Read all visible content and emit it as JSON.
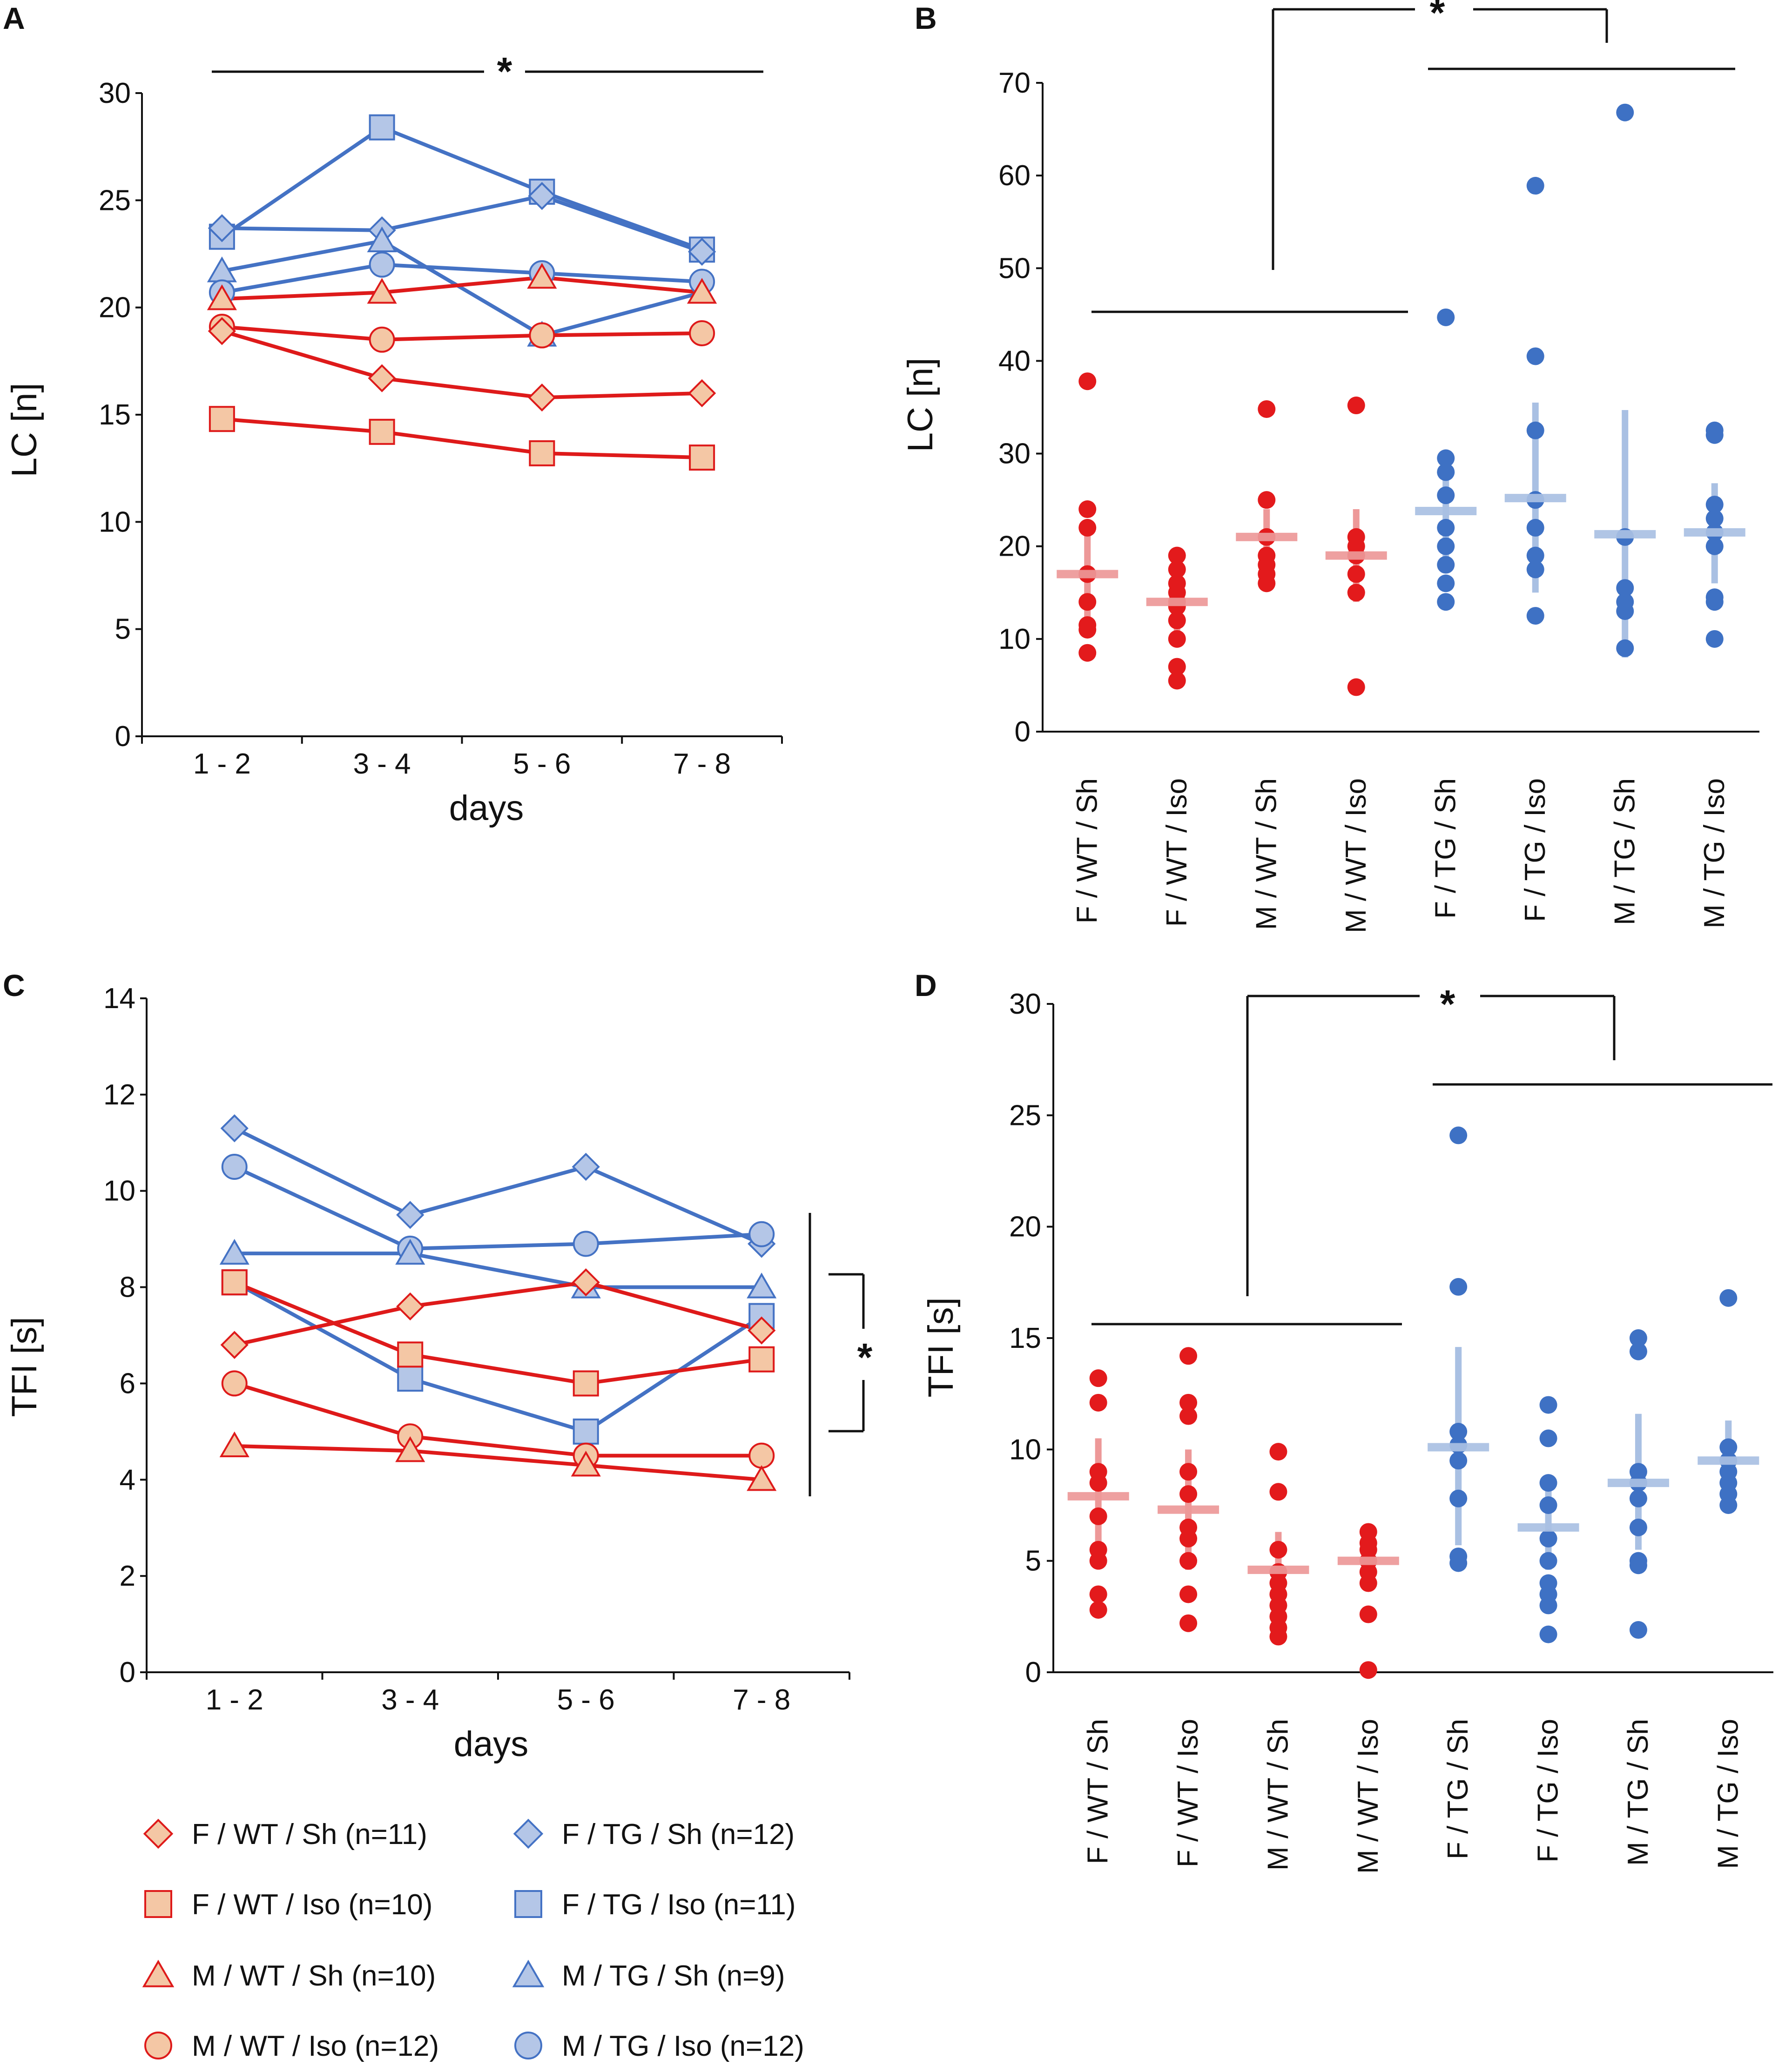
{
  "colors": {
    "wt": "#de1a1a",
    "tg": "#4472c4",
    "wt_fill": "#f4c7a5",
    "tg_fill": "#b4c6e7",
    "wt_dot": "#e31a1c",
    "tg_dot": "#3e71c4",
    "wt_bar": "#ed9898",
    "tg_bar": "#a9c0e3",
    "axis": "#111111"
  },
  "panel_labels": {
    "A": "A",
    "B": "B",
    "C": "C",
    "D": "D"
  },
  "significance": {
    "A": "*",
    "B": "*",
    "C": "*",
    "D": "*"
  },
  "legend": [
    {
      "label": "F / WT / Sh (n=11)",
      "marker": "diamond-marker",
      "group": "wt"
    },
    {
      "label": "F / TG / Sh (n=12)",
      "marker": "diamond-marker",
      "group": "tg"
    },
    {
      "label": "F / WT / Iso (n=10)",
      "marker": "square-marker",
      "group": "wt"
    },
    {
      "label": "F / TG / Iso (n=11)",
      "marker": "square-marker",
      "group": "tg"
    },
    {
      "label": "M / WT / Sh (n=10)",
      "marker": "triangle-marker",
      "group": "wt"
    },
    {
      "label": "M / TG / Sh (n=9)",
      "marker": "triangle-marker",
      "group": "tg"
    },
    {
      "label": "M / WT / Iso (n=12)",
      "marker": "circle-marker",
      "group": "wt"
    },
    {
      "label": "M / TG / Iso (n=12)",
      "marker": "circle-marker",
      "group": "tg"
    }
  ],
  "chart_data": [
    {
      "panel": "A",
      "type": "line",
      "xlabel": "days",
      "ylabel": "LC [n]",
      "categories": [
        "1 - 2",
        "3 - 4",
        "5 - 6",
        "7 - 8"
      ],
      "ylim": [
        0,
        30
      ],
      "yticks": [
        "0",
        "5",
        "10",
        "15",
        "20",
        "25",
        "30"
      ],
      "series": [
        {
          "name": "F / TG / Iso",
          "group": "tg",
          "marker": "square",
          "values": [
            23.3,
            28.4,
            25.4,
            22.7
          ]
        },
        {
          "name": "F / TG / Sh",
          "group": "tg",
          "marker": "diamond",
          "values": [
            23.7,
            23.6,
            25.2,
            22.6
          ]
        },
        {
          "name": "M / TG / Sh",
          "group": "tg",
          "marker": "triangle",
          "values": [
            21.7,
            23.1,
            18.7,
            20.7
          ]
        },
        {
          "name": "M / TG / Iso",
          "group": "tg",
          "marker": "circle",
          "values": [
            20.7,
            22.0,
            21.6,
            21.2
          ]
        },
        {
          "name": "M / WT / Sh",
          "group": "wt",
          "marker": "triangle",
          "values": [
            20.4,
            20.7,
            21.4,
            20.7
          ]
        },
        {
          "name": "M / WT / Iso",
          "group": "wt",
          "marker": "circle",
          "values": [
            19.1,
            18.5,
            18.7,
            18.8
          ]
        },
        {
          "name": "F / WT / Sh",
          "group": "wt",
          "marker": "diamond",
          "values": [
            18.9,
            16.7,
            15.8,
            16.0
          ]
        },
        {
          "name": "F / WT / Iso",
          "group": "wt",
          "marker": "square",
          "values": [
            14.8,
            14.2,
            13.2,
            13.0
          ]
        }
      ]
    },
    {
      "panel": "B",
      "type": "scatter",
      "ylabel": "LC [n]",
      "ylim": [
        0,
        70
      ],
      "yticks": [
        "0",
        "10",
        "20",
        "30",
        "40",
        "50",
        "60",
        "70"
      ],
      "categories": [
        "F / WT / Sh",
        "F / WT / Iso",
        "M / WT / Sh",
        "M / WT / Iso",
        "F / TG / Sh",
        "F / TG / Iso",
        "M / TG / Sh",
        "M / TG / Iso"
      ],
      "groups": [
        "wt",
        "wt",
        "wt",
        "wt",
        "tg",
        "tg",
        "tg",
        "tg"
      ],
      "points": [
        [
          37.8,
          24.0,
          22.0,
          17.0,
          14.0,
          11.5,
          11.0,
          8.5
        ],
        [
          19.0,
          17.5,
          16.0,
          15.0,
          14.0,
          13.5,
          12.0,
          10.0,
          7.0,
          5.5
        ],
        [
          34.8,
          25.0,
          21.0,
          19.0,
          18.0,
          17.0,
          16.0
        ],
        [
          35.2,
          21.0,
          20.0,
          19.0,
          17.0,
          15.0,
          4.8
        ],
        [
          44.7,
          29.5,
          28.0,
          25.5,
          22.0,
          20.0,
          18.0,
          16.0,
          14.0
        ],
        [
          58.9,
          40.5,
          32.5,
          25.0,
          22.0,
          19.0,
          17.5,
          12.5
        ],
        [
          66.8,
          21.0,
          15.5,
          14.0,
          13.0,
          9.0
        ],
        [
          32.5,
          32.0,
          24.5,
          23.0,
          21.5,
          20.0,
          14.5,
          14.0,
          10.0
        ]
      ],
      "means": [
        17.0,
        14.0,
        21.0,
        19.0,
        23.8,
        25.2,
        21.3,
        21.5
      ],
      "errors": [
        [
          12.0,
          22.0
        ],
        [
          10.5,
          17.0
        ],
        [
          18.0,
          24.0
        ],
        [
          14.0,
          24.0
        ],
        [
          18.5,
          28.5
        ],
        [
          15.0,
          35.5
        ],
        [
          8.0,
          34.7
        ],
        [
          16.0,
          26.8
        ]
      ]
    },
    {
      "panel": "C",
      "type": "line",
      "xlabel": "days",
      "ylabel": "TFI [s]",
      "categories": [
        "1 - 2",
        "3 - 4",
        "5 - 6",
        "7 - 8"
      ],
      "ylim": [
        0,
        14
      ],
      "yticks": [
        "0",
        "2",
        "4",
        "6",
        "8",
        "10",
        "12",
        "14"
      ],
      "series": [
        {
          "name": "F / TG / Sh",
          "group": "tg",
          "marker": "diamond",
          "values": [
            11.3,
            9.5,
            10.5,
            8.9
          ]
        },
        {
          "name": "M / TG / Iso",
          "group": "tg",
          "marker": "circle",
          "values": [
            10.5,
            8.8,
            8.9,
            9.1
          ]
        },
        {
          "name": "M / TG / Sh",
          "group": "tg",
          "marker": "triangle",
          "values": [
            8.7,
            8.7,
            8.0,
            8.0
          ]
        },
        {
          "name": "F / TG / Iso",
          "group": "tg",
          "marker": "square",
          "values": [
            8.1,
            6.1,
            5.0,
            7.4
          ]
        },
        {
          "name": "F / WT / Sh",
          "group": "wt",
          "marker": "diamond",
          "values": [
            6.8,
            7.6,
            8.1,
            7.1
          ]
        },
        {
          "name": "F / WT / Iso",
          "group": "wt",
          "marker": "square",
          "values": [
            8.1,
            6.6,
            6.0,
            6.5
          ]
        },
        {
          "name": "M / WT / Iso",
          "group": "wt",
          "marker": "circle",
          "values": [
            6.0,
            4.9,
            4.5,
            4.5
          ]
        },
        {
          "name": "M / WT / Sh",
          "group": "wt",
          "marker": "triangle",
          "values": [
            4.7,
            4.6,
            4.3,
            4.0
          ]
        }
      ]
    },
    {
      "panel": "D",
      "type": "scatter",
      "ylabel": "TFI [s]",
      "ylim": [
        0,
        30
      ],
      "yticks": [
        "0",
        "5",
        "10",
        "15",
        "20",
        "25",
        "30"
      ],
      "categories": [
        "F / WT / Sh",
        "F / WT / Iso",
        "M / WT / Sh",
        "M / WT / Iso",
        "F / TG / Sh",
        "F / TG / Iso",
        "M / TG / Sh",
        "M / TG / Iso"
      ],
      "groups": [
        "wt",
        "wt",
        "wt",
        "wt",
        "tg",
        "tg",
        "tg",
        "tg"
      ],
      "points": [
        [
          13.2,
          12.1,
          9.0,
          8.5,
          7.0,
          5.5,
          5.0,
          3.5,
          2.8
        ],
        [
          14.2,
          12.1,
          11.5,
          9.0,
          8.0,
          6.5,
          6.0,
          5.0,
          3.5,
          2.2
        ],
        [
          9.9,
          8.1,
          5.5,
          4.5,
          4.0,
          3.5,
          3.0,
          2.5,
          2.0,
          1.6
        ],
        [
          6.3,
          5.8,
          5.5,
          5.0,
          4.5,
          4.0,
          2.6,
          0.1
        ],
        [
          24.1,
          17.3,
          10.8,
          10.2,
          9.5,
          7.8,
          5.2,
          4.9
        ],
        [
          12.0,
          10.5,
          8.5,
          7.5,
          6.0,
          5.0,
          4.0,
          3.5,
          3.0,
          1.7
        ],
        [
          15.0,
          14.4,
          9.0,
          8.5,
          7.8,
          6.5,
          5.0,
          4.8,
          1.9
        ],
        [
          16.8,
          10.1,
          9.5,
          9.0,
          8.5,
          8.0,
          7.5
        ]
      ],
      "means": [
        7.9,
        7.3,
        4.6,
        5.0,
        10.1,
        6.5,
        8.5,
        9.5
      ],
      "errors": [
        [
          5.3,
          10.5
        ],
        [
          4.6,
          10.0
        ],
        [
          3.0,
          6.3
        ],
        [
          3.8,
          6.2
        ],
        [
          5.7,
          14.6
        ],
        [
          4.6,
          8.3
        ],
        [
          5.5,
          11.6
        ],
        [
          7.8,
          11.3
        ]
      ]
    }
  ]
}
